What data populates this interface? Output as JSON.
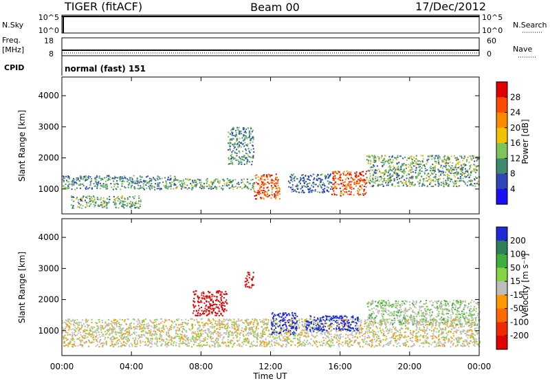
{
  "header": {
    "radar": "TIGER (fitACF)",
    "beam": "Beam 00",
    "date": "17/Dec/2012"
  },
  "top_panels": {
    "nsky_label": "N.Sky",
    "nsky_ticks": [
      "10^5",
      "10^0"
    ],
    "nsearch_label": "N.Search",
    "nsearch_ticks": [
      "10^5",
      "10^0"
    ],
    "freq_label": "Freq.",
    "freq_unit": "[MHz]",
    "freq_ticks": [
      "18",
      "8"
    ],
    "nave_label": "Nave",
    "nave_ticks": [
      "60",
      "0"
    ],
    "cpid_label": "CPID",
    "cpid_value": "normal (fast) 151"
  },
  "power_colorbar": {
    "title": "Power [dB]",
    "ticks": [
      "28",
      "24",
      "20",
      "16",
      "12",
      "8",
      "4"
    ],
    "colors": [
      "#e00000",
      "#ff4a00",
      "#ff8a00",
      "#f2c200",
      "#7fc45a",
      "#3d8a6e",
      "#2e46b8",
      "#1a10f5"
    ]
  },
  "velocity_colorbar": {
    "title": "Velocity [m s⁻¹]",
    "ticks": [
      "200",
      "100",
      "50",
      "15",
      "-15",
      "-50",
      "-100",
      "-200"
    ],
    "colors": [
      "#1c2bd6",
      "#2f7f5a",
      "#3fae3c",
      "#86d444",
      "#bdbdbd",
      "#ff9900",
      "#ff6a00",
      "#ee2a00",
      "#e00000"
    ]
  },
  "chart_data": {
    "type": "heatmap",
    "title": "TIGER (fitACF)  Beam 00  17/Dec/2012",
    "xlabel": "Time UT",
    "x_ticks": [
      "00:00",
      "04:00",
      "08:00",
      "12:00",
      "16:00",
      "20:00",
      "00:00"
    ],
    "ylabel": "Slant Range [km]",
    "y_ticks": [
      "1000",
      "2000",
      "3000",
      "4000"
    ],
    "ylim": [
      200,
      4600
    ],
    "xlim_hours": [
      0,
      24
    ],
    "panels": [
      {
        "name": "Power",
        "quantity": "Power [dB]",
        "scatter_regions": [
          {
            "t": [
              0.0,
              6.5
            ],
            "range_km": [
              1000,
              1450
            ],
            "value": 12
          },
          {
            "t": [
              0.5,
              4.5
            ],
            "range_km": [
              400,
              800
            ],
            "value": 14
          },
          {
            "t": [
              6.5,
              11.0
            ],
            "range_km": [
              1000,
              1350
            ],
            "value": 14
          },
          {
            "t": [
              11.0,
              12.5
            ],
            "range_km": [
              700,
              1500
            ],
            "value": 28
          },
          {
            "t": [
              13.0,
              15.5
            ],
            "range_km": [
              900,
              1500
            ],
            "value": 10
          },
          {
            "t": [
              15.5,
              17.5
            ],
            "range_km": [
              800,
              1600
            ],
            "value": 28
          },
          {
            "t": [
              17.5,
              24.0
            ],
            "range_km": [
              1100,
              2100
            ],
            "value": 14
          },
          {
            "t": [
              9.5,
              11.0
            ],
            "range_km": [
              1800,
              3000
            ],
            "value": 12
          }
        ]
      },
      {
        "name": "Velocity",
        "quantity": "Velocity [m s⁻¹]",
        "scatter_regions": [
          {
            "t": [
              0.0,
              24.0
            ],
            "range_km": [
              500,
              1400
            ],
            "value": 0
          },
          {
            "t": [
              7.5,
              9.5
            ],
            "range_km": [
              1500,
              2300
            ],
            "value": -200
          },
          {
            "t": [
              10.5,
              11.0
            ],
            "range_km": [
              2400,
              2900
            ],
            "value": -200
          },
          {
            "t": [
              12.0,
              13.5
            ],
            "range_km": [
              900,
              1600
            ],
            "value": 200
          },
          {
            "t": [
              14.0,
              17.0
            ],
            "range_km": [
              1000,
              1500
            ],
            "value": 200
          },
          {
            "t": [
              17.5,
              24.0
            ],
            "range_km": [
              1200,
              2000
            ],
            "value": 15
          }
        ]
      }
    ]
  }
}
